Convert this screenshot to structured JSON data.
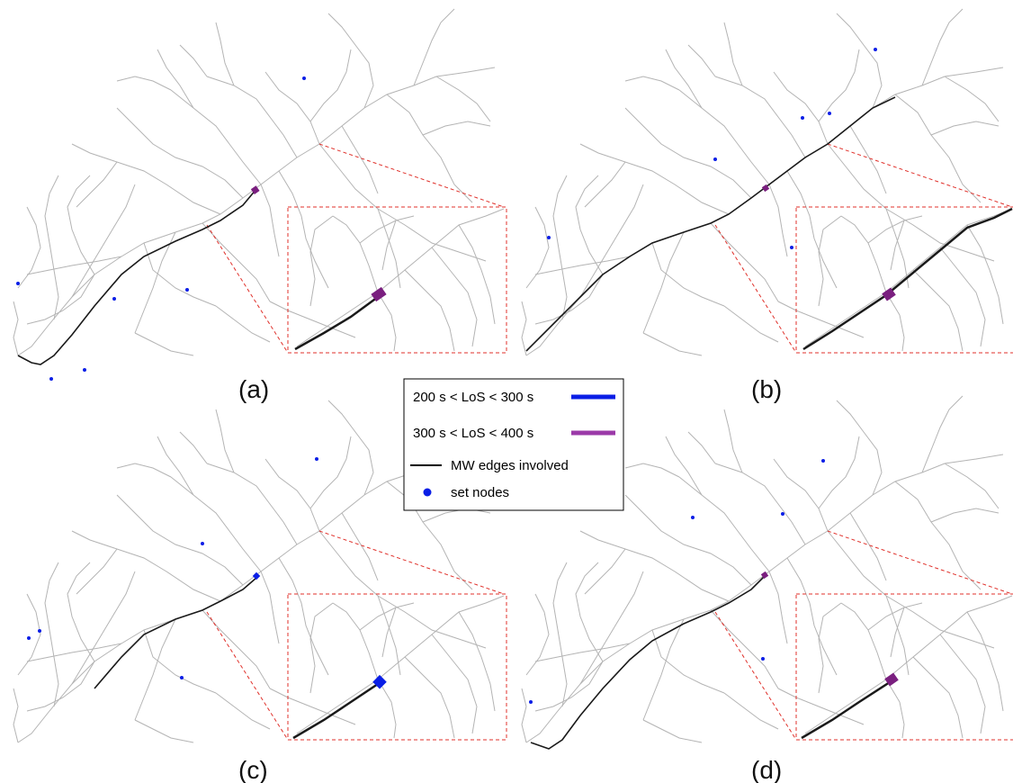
{
  "panels": [
    {
      "label": "(a)",
      "marker_class": "purple",
      "set_nodes": 6
    },
    {
      "label": "(b)",
      "marker_class": "purple",
      "set_nodes": 6
    },
    {
      "label": "(c)",
      "marker_class": "blue",
      "set_nodes": 5
    },
    {
      "label": "(d)",
      "marker_class": "purple",
      "set_nodes": 5
    }
  ],
  "legend": {
    "items": [
      {
        "label": "200 s < LoS < 300 s",
        "symbol": "thick-line",
        "color": "#0a1ee6"
      },
      {
        "label": "300 s < LoS < 400 s",
        "symbol": "thick-line",
        "color": "#9b3aa8"
      },
      {
        "label": "MW edges involved",
        "symbol": "line",
        "color": "#000000"
      },
      {
        "label": "set nodes",
        "symbol": "dot",
        "color": "#0a1ee6"
      }
    ]
  },
  "colors": {
    "network": "#b4b4b4",
    "mw_edge": "#1a1a1a",
    "zoom_box": "#e0312b",
    "blue_marker": "#0a1ee6",
    "purple_marker": "#7a1f7f"
  }
}
